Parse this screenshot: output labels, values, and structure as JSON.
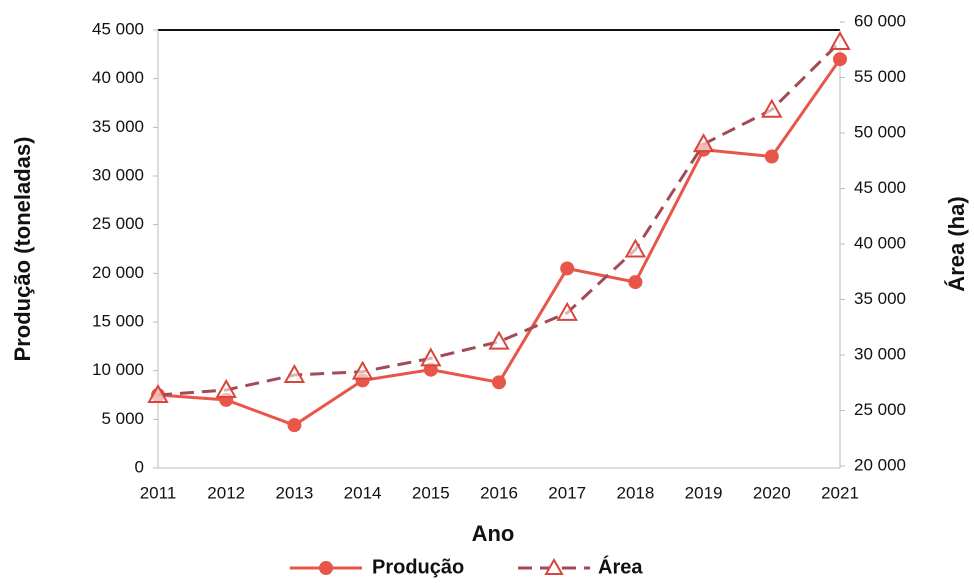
{
  "chart_data": {
    "type": "line",
    "x_label": "Ano",
    "y_label": "Produção (toneladas)",
    "y2_label": "Área (ha)",
    "categories": [
      "2011",
      "2012",
      "2013",
      "2014",
      "2015",
      "2016",
      "2017",
      "2018",
      "2019",
      "2020",
      "2021"
    ],
    "series": [
      {
        "name": "Produção",
        "color": "#e8564a",
        "values": [
          7500,
          7000,
          4400,
          9000,
          10100,
          8800,
          20500,
          19100,
          32700,
          32000,
          42000
        ]
      },
      {
        "name": "Área",
        "color": "#d9453b",
        "axis": "y2",
        "values": [
          26400,
          26850,
          28200,
          28500,
          29700,
          31200,
          33800,
          39500,
          49000,
          52100,
          58200
        ]
      }
    ],
    "ylim": [
      0,
      45000
    ],
    "yticks": [
      0,
      {
        "value": 5000,
        "label": "5 000"
      },
      {
        "value": 10000,
        "label": "10 000"
      },
      {
        "value": 15000,
        "label": "15 000"
      },
      {
        "value": 20000,
        "label": "20 000"
      },
      {
        "value": 25000,
        "label": "25 000"
      },
      {
        "value": 30000,
        "label": "30 000"
      },
      {
        "value": 35000,
        "label": "35 000"
      },
      {
        "value": 40000,
        "label": "40 000"
      },
      {
        "value": 45000,
        "label": "45 000"
      }
    ],
    "y2lim": [
      20000,
      60000
    ],
    "y2ticks": [
      {
        "value": 20000,
        "label": "20 000"
      },
      {
        "value": 25000,
        "label": "25 000"
      },
      {
        "value": 30000,
        "label": "30 000"
      },
      {
        "value": 35000,
        "label": "35 000"
      },
      {
        "value": 40000,
        "label": "40 000"
      },
      {
        "value": 45000,
        "label": "45 000"
      },
      {
        "value": 50000,
        "label": "50 000"
      },
      {
        "value": 55000,
        "label": "55 000"
      },
      {
        "value": 60000,
        "label": "60 000"
      }
    ],
    "legend": "bottom"
  }
}
